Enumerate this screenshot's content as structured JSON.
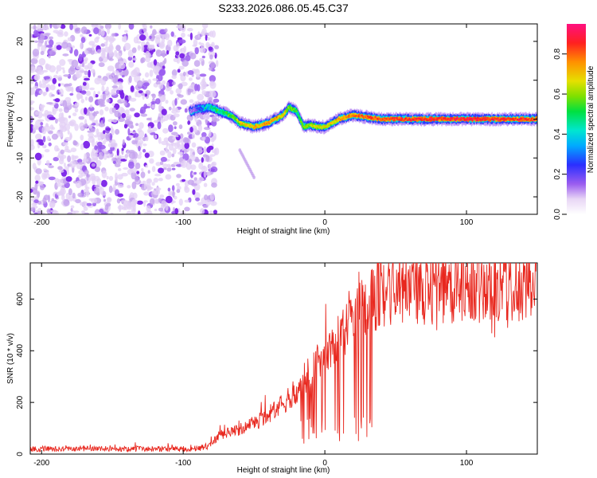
{
  "title": "S233.2026.086.05.45.C37",
  "chart_data": [
    {
      "type": "heatmap",
      "name": "spectrogram",
      "xlabel": "Height of straight line (km)",
      "ylabel": "Frequency (Hz)",
      "xlim": [
        -208,
        150
      ],
      "ylim": [
        -24.5,
        24.5
      ],
      "x_ticks": [
        -200,
        -100,
        0,
        100
      ],
      "x_tick_labels": [
        "-200",
        "-100",
        "0",
        "100"
      ],
      "y_ticks": [
        -20,
        -10,
        0,
        10,
        20
      ],
      "y_tick_labels": [
        "-20",
        "-10",
        "0",
        "10",
        "20"
      ],
      "noise_region_x": [
        -208,
        -82
      ],
      "signal_trace": {
        "x": [
          -95,
          -90,
          -85,
          -80,
          -75,
          -70,
          -65,
          -60,
          -55,
          -50,
          -45,
          -40,
          -35,
          -30,
          -25,
          -20,
          -15,
          -10,
          -5,
          0,
          5,
          10,
          15,
          20,
          30,
          40,
          50,
          60,
          70,
          80,
          90,
          100,
          110,
          120,
          130,
          140,
          150
        ],
        "y": [
          2,
          2.5,
          3,
          3,
          2,
          1.5,
          0.5,
          -1,
          -1.5,
          -2,
          -1.5,
          -1,
          0,
          1,
          3,
          2,
          -2,
          -1.5,
          -2,
          -2,
          -1,
          0,
          0.5,
          1,
          0.5,
          0,
          0,
          0,
          0,
          0,
          0,
          0,
          0,
          0,
          0,
          0,
          0
        ],
        "amplitude": [
          0.15,
          0.25,
          0.35,
          0.45,
          0.5,
          0.55,
          0.6,
          0.65,
          0.7,
          0.75,
          0.75,
          0.8,
          0.75,
          0.7,
          0.6,
          0.55,
          0.6,
          0.65,
          0.7,
          0.7,
          0.7,
          0.75,
          0.8,
          0.82,
          0.85,
          0.85,
          0.88,
          0.9,
          0.9,
          0.9,
          0.9,
          0.9,
          0.9,
          0.9,
          0.88,
          0.87,
          0.85
        ]
      },
      "streak": {
        "x": [
          -60,
          -50
        ],
        "y": [
          -8,
          -15
        ]
      }
    },
    {
      "type": "colorbar",
      "name": "amplitude-colorbar",
      "label": "Normalized spectral amplitude",
      "range": [
        0,
        0.95
      ],
      "ticks": [
        0.0,
        0.2,
        0.4,
        0.6,
        0.8
      ],
      "tick_labels": [
        "0.0",
        "0.2",
        "0.4",
        "0.6",
        "0.8"
      ]
    },
    {
      "type": "line",
      "name": "snr",
      "xlabel": "Height of straight line (km)",
      "ylabel": "SNR (10 * v/v)",
      "xlim": [
        -208,
        150
      ],
      "ylim": [
        0,
        740
      ],
      "x_ticks": [
        -200,
        -100,
        0,
        100
      ],
      "x_tick_labels": [
        "-200",
        "-100",
        "0",
        "100"
      ],
      "y_ticks": [
        0,
        200,
        400,
        600
      ],
      "y_tick_labels": [
        "0",
        "200",
        "400",
        "600"
      ],
      "color": "#e8271e",
      "envelope": {
        "x": [
          -208,
          -150,
          -100,
          -85,
          -80,
          -75,
          -70,
          -60,
          -50,
          -40,
          -30,
          -20,
          -10,
          0,
          10,
          20,
          30,
          40,
          50,
          60,
          70,
          80,
          90,
          100,
          110,
          120,
          130,
          140,
          150
        ],
        "y": [
          20,
          20,
          20,
          25,
          40,
          70,
          80,
          95,
          120,
          150,
          190,
          250,
          320,
          390,
          460,
          520,
          580,
          620,
          625,
          630,
          635,
          638,
          640,
          640,
          642,
          642,
          640,
          638,
          635
        ]
      },
      "dropout_region_x": [
        -20,
        35
      ]
    }
  ]
}
